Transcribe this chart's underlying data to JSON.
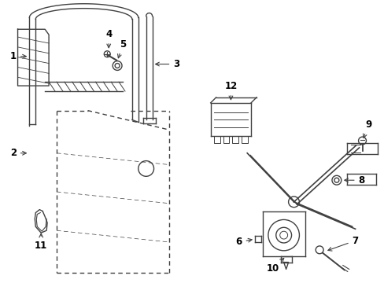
{
  "bg_color": "#ffffff",
  "line_color": "#404040",
  "label_color": "#000000",
  "fig_width": 4.89,
  "fig_height": 3.6,
  "dpi": 100,
  "lw": 1.0
}
